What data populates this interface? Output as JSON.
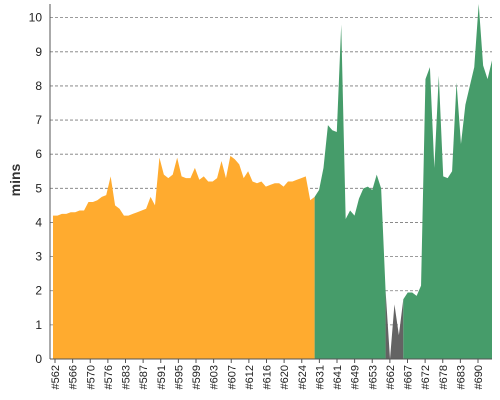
{
  "chart_data": {
    "type": "area",
    "ylabel": "mins",
    "ylim": [
      0,
      10.4
    ],
    "yticks": [
      0,
      1,
      2,
      3,
      4,
      5,
      6,
      7,
      8,
      9,
      10
    ],
    "grid": "horizontal",
    "x_tick_labels": [
      "#562",
      "#566",
      "#570",
      "#576",
      "#583",
      "#587",
      "#591",
      "#595",
      "#599",
      "#603",
      "#607",
      "#612",
      "#616",
      "#620",
      "#624",
      "#631",
      "#641",
      "#649",
      "#653",
      "#662",
      "#667",
      "#672",
      "#678",
      "#683",
      "#690"
    ],
    "series": [
      {
        "color": "#ffab2f",
        "values": [
          4.2,
          4.2,
          4.25,
          4.25,
          4.3,
          4.3,
          4.35,
          4.35,
          4.6,
          4.6,
          4.65,
          4.75,
          4.8,
          5.35,
          4.5,
          4.4,
          4.2,
          4.2,
          4.25,
          4.3,
          4.35,
          4.4,
          4.75,
          4.5,
          5.9,
          5.4,
          5.3,
          5.4,
          5.9,
          5.35,
          5.3,
          5.3,
          5.6,
          5.25,
          5.35,
          5.2,
          5.2,
          5.3,
          5.8,
          5.3,
          5.95,
          5.85,
          5.7,
          5.3,
          5.5,
          5.2,
          5.15,
          5.2,
          5.05,
          5.1,
          5.15,
          5.15,
          5.05,
          5.2,
          5.2,
          5.25,
          5.3,
          5.35,
          4.65
        ]
      },
      {
        "color": "#469c6a",
        "values": [
          4.75,
          4.95,
          5.6,
          6.85,
          6.7,
          6.65,
          9.8,
          4.1,
          4.35,
          4.2,
          4.7,
          5.0,
          5.05,
          4.95,
          5.4,
          5.0
        ]
      },
      {
        "color": "#636363",
        "values": [
          2.0,
          0.0,
          1.6,
          0.7
        ]
      },
      {
        "color": "#469c6a",
        "values": [
          1.75,
          1.95,
          1.95,
          1.85,
          2.15,
          8.2,
          8.55,
          5.6,
          8.3,
          5.35,
          5.3,
          5.5,
          8.1,
          6.3,
          7.45,
          8.0,
          8.55,
          10.4,
          8.6,
          8.2,
          8.75
        ]
      }
    ]
  }
}
